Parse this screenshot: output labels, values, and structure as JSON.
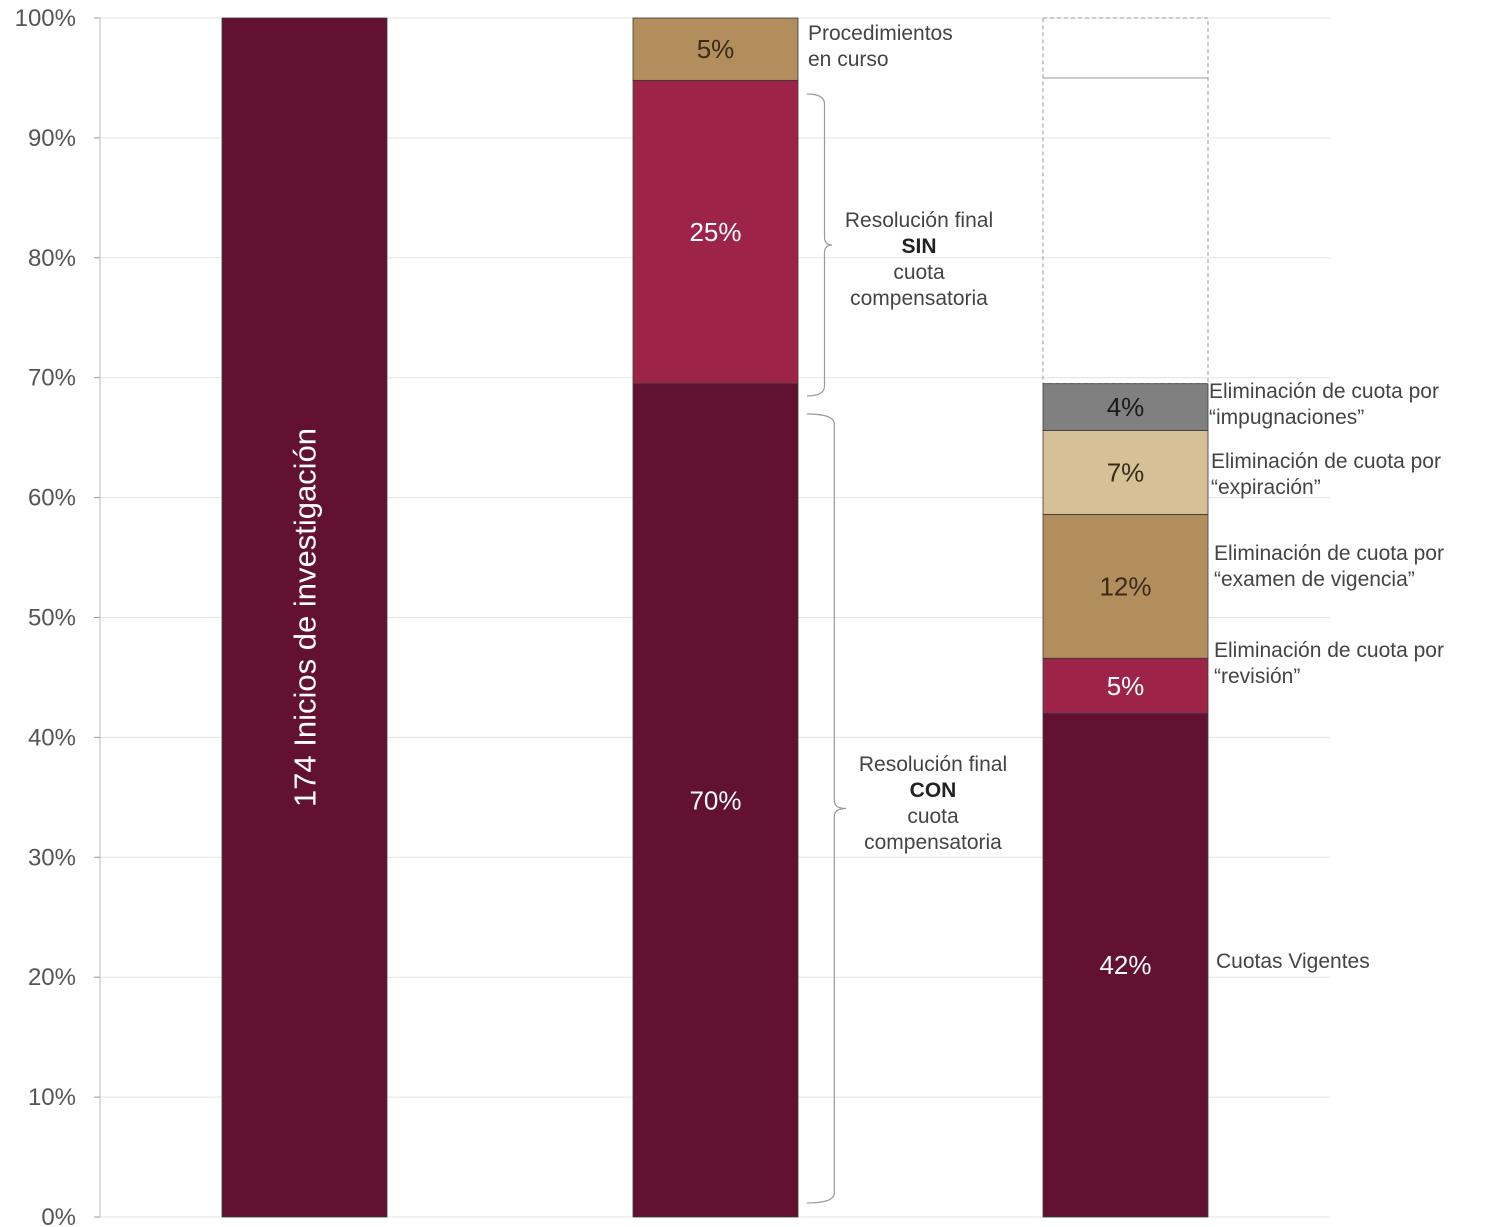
{
  "chart_data": {
    "type": "bar",
    "stacked": true,
    "ylim": [
      0,
      100
    ],
    "yticks": [
      "0%",
      "10%",
      "20%",
      "30%",
      "40%",
      "50%",
      "60%",
      "70%",
      "80%",
      "90%",
      "100%"
    ],
    "grid": true,
    "bars": [
      {
        "label": "174 Inicios de investigación",
        "segments": [
          {
            "value": 100,
            "label": "",
            "color": "#621132"
          }
        ]
      },
      {
        "label": "",
        "segments": [
          {
            "value": 69.5,
            "label": "70%",
            "color": "#621132",
            "text_color": "#ffffff"
          },
          {
            "value": 25.3,
            "label": "25%",
            "color": "#9d2348",
            "text_color": "#ffffff"
          },
          {
            "value": 5.2,
            "label": "5%",
            "color": "#b38e5d",
            "text_color": "#3a2a1a"
          }
        ]
      },
      {
        "label": "",
        "outline_total": 100,
        "outline_split": 95,
        "segments": [
          {
            "value": 42,
            "label": "42%",
            "color": "#621132",
            "text_color": "#ffffff"
          },
          {
            "value": 4.6,
            "label": "5%",
            "color": "#9d2348",
            "text_color": "#ffffff"
          },
          {
            "value": 12,
            "label": "12%",
            "color": "#b38e5d",
            "text_color": "#3a2a1a"
          },
          {
            "value": 7,
            "label": "7%",
            "color": "#d5c097",
            "text_color": "#3a2a1a"
          },
          {
            "value": 3.9,
            "label": "4%",
            "color": "#808080",
            "text_color": "#1a1a1a"
          }
        ]
      }
    ],
    "annotations": {
      "en_curso": {
        "lines": [
          "Procedimientos",
          "en curso"
        ]
      },
      "sin": {
        "lines": [
          "Resolución final",
          "SIN",
          "cuota",
          "compensatoria"
        ],
        "bold_line": 1
      },
      "con": {
        "lines": [
          "Resolución final",
          "CON",
          "cuota",
          "compensatoria"
        ],
        "bold_line": 1
      },
      "impugnaciones": {
        "lines": [
          "Eliminación de cuota por",
          "“impugnaciones”"
        ]
      },
      "expiracion": {
        "lines": [
          "Eliminación de cuota por",
          "“expiración”"
        ]
      },
      "examen": {
        "lines": [
          "Eliminación de cuota por",
          "“examen de vigencia”"
        ]
      },
      "revision": {
        "lines": [
          "Eliminación de cuota por",
          "“revisión”"
        ]
      },
      "vigentes": {
        "lines": [
          "Cuotas Vigentes"
        ]
      }
    }
  }
}
